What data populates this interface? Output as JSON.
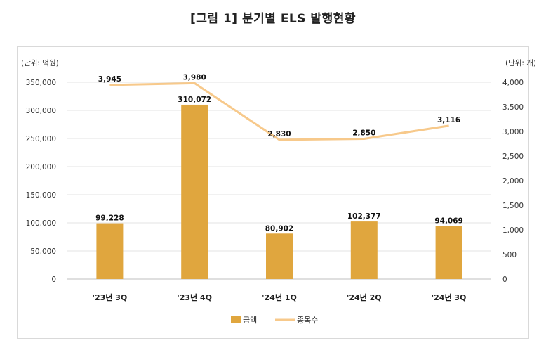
{
  "title": "[그림 1] 분기별 ELS 발행현황",
  "chart_data": {
    "type": "bar+line",
    "categories": [
      "'23년 3Q",
      "'23년 4Q",
      "'24년 1Q",
      "'24년 2Q",
      "'24년 3Q"
    ],
    "series": [
      {
        "name": "금액",
        "type": "bar",
        "axis": "left",
        "values": [
          99228,
          310072,
          80902,
          102377,
          94069
        ],
        "color": "#e0a63e"
      },
      {
        "name": "종목수",
        "type": "line",
        "axis": "right",
        "values": [
          3945,
          3980,
          2830,
          2850,
          3116
        ],
        "color": "#f7c98b"
      }
    ],
    "data_labels": {
      "bar": [
        "99,228",
        "310,072",
        "80,902",
        "102,377",
        "94,069"
      ],
      "line": [
        "3,945",
        "3,980",
        "2,830",
        "2,850",
        "3,116"
      ]
    },
    "y_left": {
      "unit_label": "(단위: 억원)",
      "ylim": [
        0,
        350000
      ],
      "ticks": [
        "0",
        "50,000",
        "100,000",
        "150,000",
        "200,000",
        "250,000",
        "300,000",
        "350,000"
      ]
    },
    "y_right": {
      "unit_label": "(단위: 개)",
      "ylim": [
        0,
        4000
      ],
      "ticks": [
        "0",
        "500",
        "1,000",
        "1,500",
        "2,000",
        "2,500",
        "3,000",
        "3,500",
        "4,000"
      ]
    },
    "grid": true,
    "legend_position": "bottom"
  }
}
